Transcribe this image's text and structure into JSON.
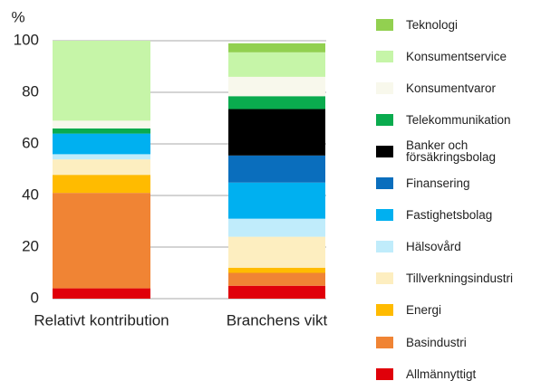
{
  "chart_data": {
    "type": "stacked_bar",
    "y_label": "%",
    "categories": [
      "Relativt kontribution",
      "Branchens vikt"
    ],
    "series": [
      {
        "name": "Allmännyttigt",
        "color": "#e0000a",
        "values": [
          4,
          5
        ]
      },
      {
        "name": "Basindustri",
        "color": "#f08434",
        "values": [
          37,
          5
        ]
      },
      {
        "name": "Energi",
        "color": "#ffbb00",
        "values": [
          7,
          2
        ]
      },
      {
        "name": "Tillverkningsindustri",
        "color": "#fdeec0",
        "values": [
          6,
          12
        ]
      },
      {
        "name": "Hälsovård",
        "color": "#c0ecfb",
        "values": [
          2,
          7
        ]
      },
      {
        "name": "Fastighetsbolag",
        "color": "#00b0f0",
        "values": [
          8,
          14
        ]
      },
      {
        "name": "Finansering",
        "color": "#0a6ebd",
        "values": [
          0,
          10.5
        ]
      },
      {
        "name": "Banker och försäkringsbolag",
        "color": "#000000",
        "values": [
          0,
          18
        ]
      },
      {
        "name": "Telekommunikation",
        "color": "#0aab4e",
        "values": [
          2,
          5
        ]
      },
      {
        "name": "Konsumentvaror",
        "color": "#f8f8ec",
        "values": [
          3,
          7.5
        ]
      },
      {
        "name": "Konsumentservice",
        "color": "#c6f5a8",
        "values": [
          31,
          9.5
        ]
      },
      {
        "name": "Teknologi",
        "color": "#92d050",
        "values": [
          0,
          3.5
        ]
      }
    ],
    "ylim": [
      0,
      100
    ],
    "yticks": [
      0,
      20,
      40,
      60,
      80,
      100
    ],
    "grid": true,
    "legend": "right"
  }
}
